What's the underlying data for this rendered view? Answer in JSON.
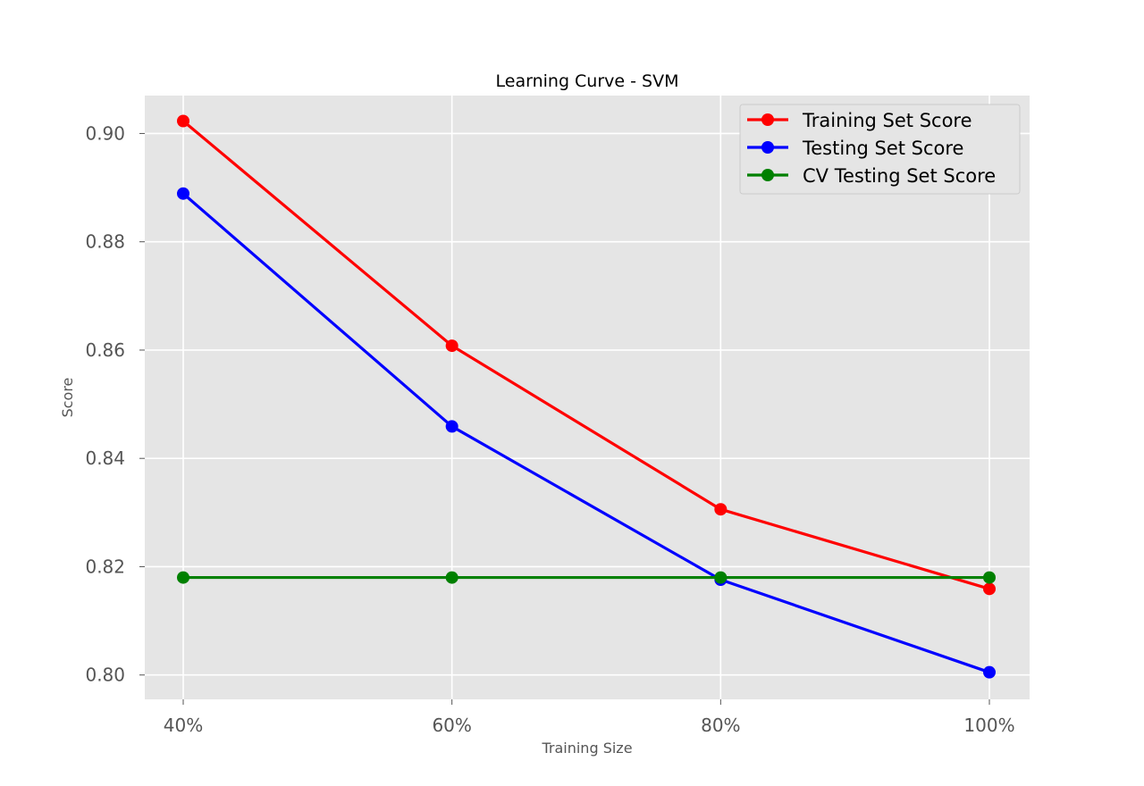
{
  "chart_data": {
    "type": "line",
    "title": "Learning Curve - SVM",
    "xlabel": "Training Size",
    "ylabel": "Score",
    "categories": [
      "40%",
      "60%",
      "80%",
      "100%"
    ],
    "ylim": [
      0.7955,
      0.907
    ],
    "yticks": [
      0.8,
      0.82,
      0.84,
      0.86,
      0.88,
      0.9
    ],
    "ytick_labels": [
      "0.80",
      "0.82",
      "0.84",
      "0.86",
      "0.88",
      "0.90"
    ],
    "grid": true,
    "legend_position": "top-right",
    "series": [
      {
        "name": "Training Set Score",
        "color": "#ff0000",
        "values": [
          0.9023,
          0.8608,
          0.8306,
          0.8159
        ]
      },
      {
        "name": "Testing Set Score",
        "color": "#0000ff",
        "values": [
          0.8889,
          0.8459,
          0.8176,
          0.8005
        ]
      },
      {
        "name": "CV Testing Set Score",
        "color": "#008000",
        "values": [
          0.818,
          0.818,
          0.818,
          0.818
        ]
      }
    ]
  }
}
